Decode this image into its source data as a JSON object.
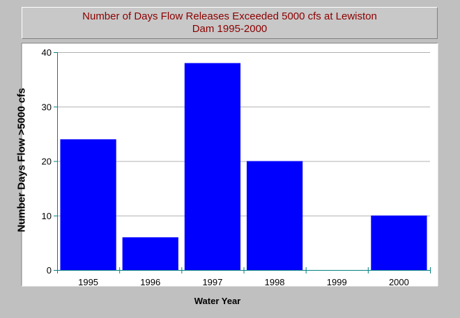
{
  "chart_data": {
    "type": "bar",
    "title": [
      "Number of Days Flow Releases Exceeded 5000 cfs at Lewiston",
      "Dam 1995-2000"
    ],
    "xlabel": "Water Year",
    "ylabel": "Number Days Flow >5000 cfs",
    "categories": [
      "1995",
      "1996",
      "1997",
      "1998",
      "1999",
      "2000"
    ],
    "values": [
      24,
      6,
      38,
      20,
      0,
      10
    ],
    "ylim": [
      0,
      40
    ],
    "yticks": [
      "0",
      "10",
      "20",
      "30",
      "40"
    ],
    "grid": true,
    "colors": {
      "bar": "#0000ff",
      "title": "#8b0000",
      "axis": "#008080",
      "grid": "#b0b0b0",
      "plot_bg": "#ffffff",
      "page_bg": "#c0c0c0"
    }
  }
}
